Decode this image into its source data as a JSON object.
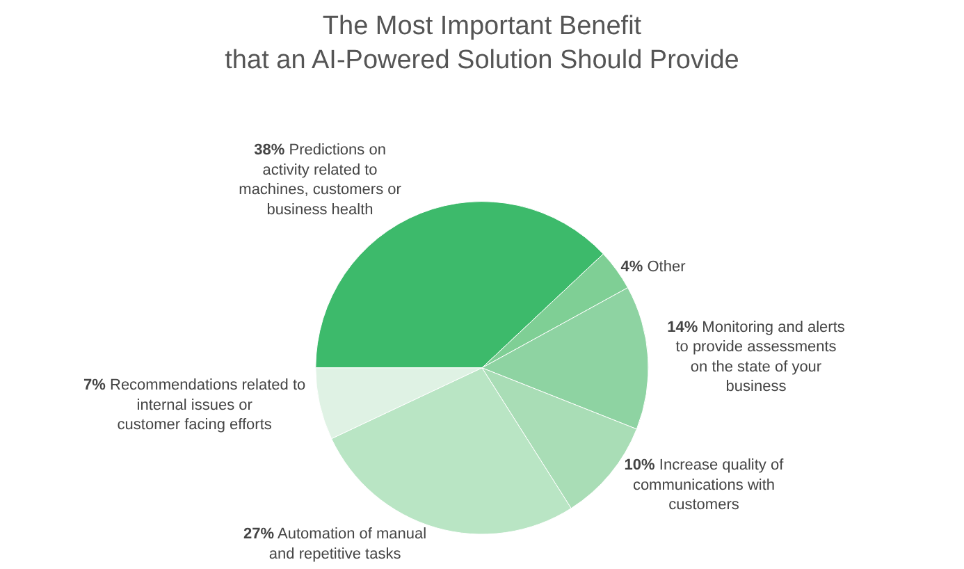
{
  "chart_data": {
    "type": "pie",
    "title": "The Most Important Benefit\nthat an AI-Powered Solution Should Provide",
    "categories": [
      "Predictions on activity related to machines, customers or business health",
      "Other",
      "Monitoring and alerts to provide assessments on the state of your business",
      "Increase quality of communications with customers",
      "Automation of manual and repetitive tasks",
      "Recommendations related to internal issues or customer facing efforts"
    ],
    "values": [
      38,
      4,
      14,
      10,
      27,
      7
    ],
    "value_labels": [
      "38%",
      "4%",
      "14%",
      "10%",
      "27%",
      "7%"
    ],
    "colors": [
      "#3dba6b",
      "#7fcf95",
      "#8ed3a2",
      "#a9ddb6",
      "#b9e5c4",
      "#dff2e4"
    ],
    "legend": false
  }
}
